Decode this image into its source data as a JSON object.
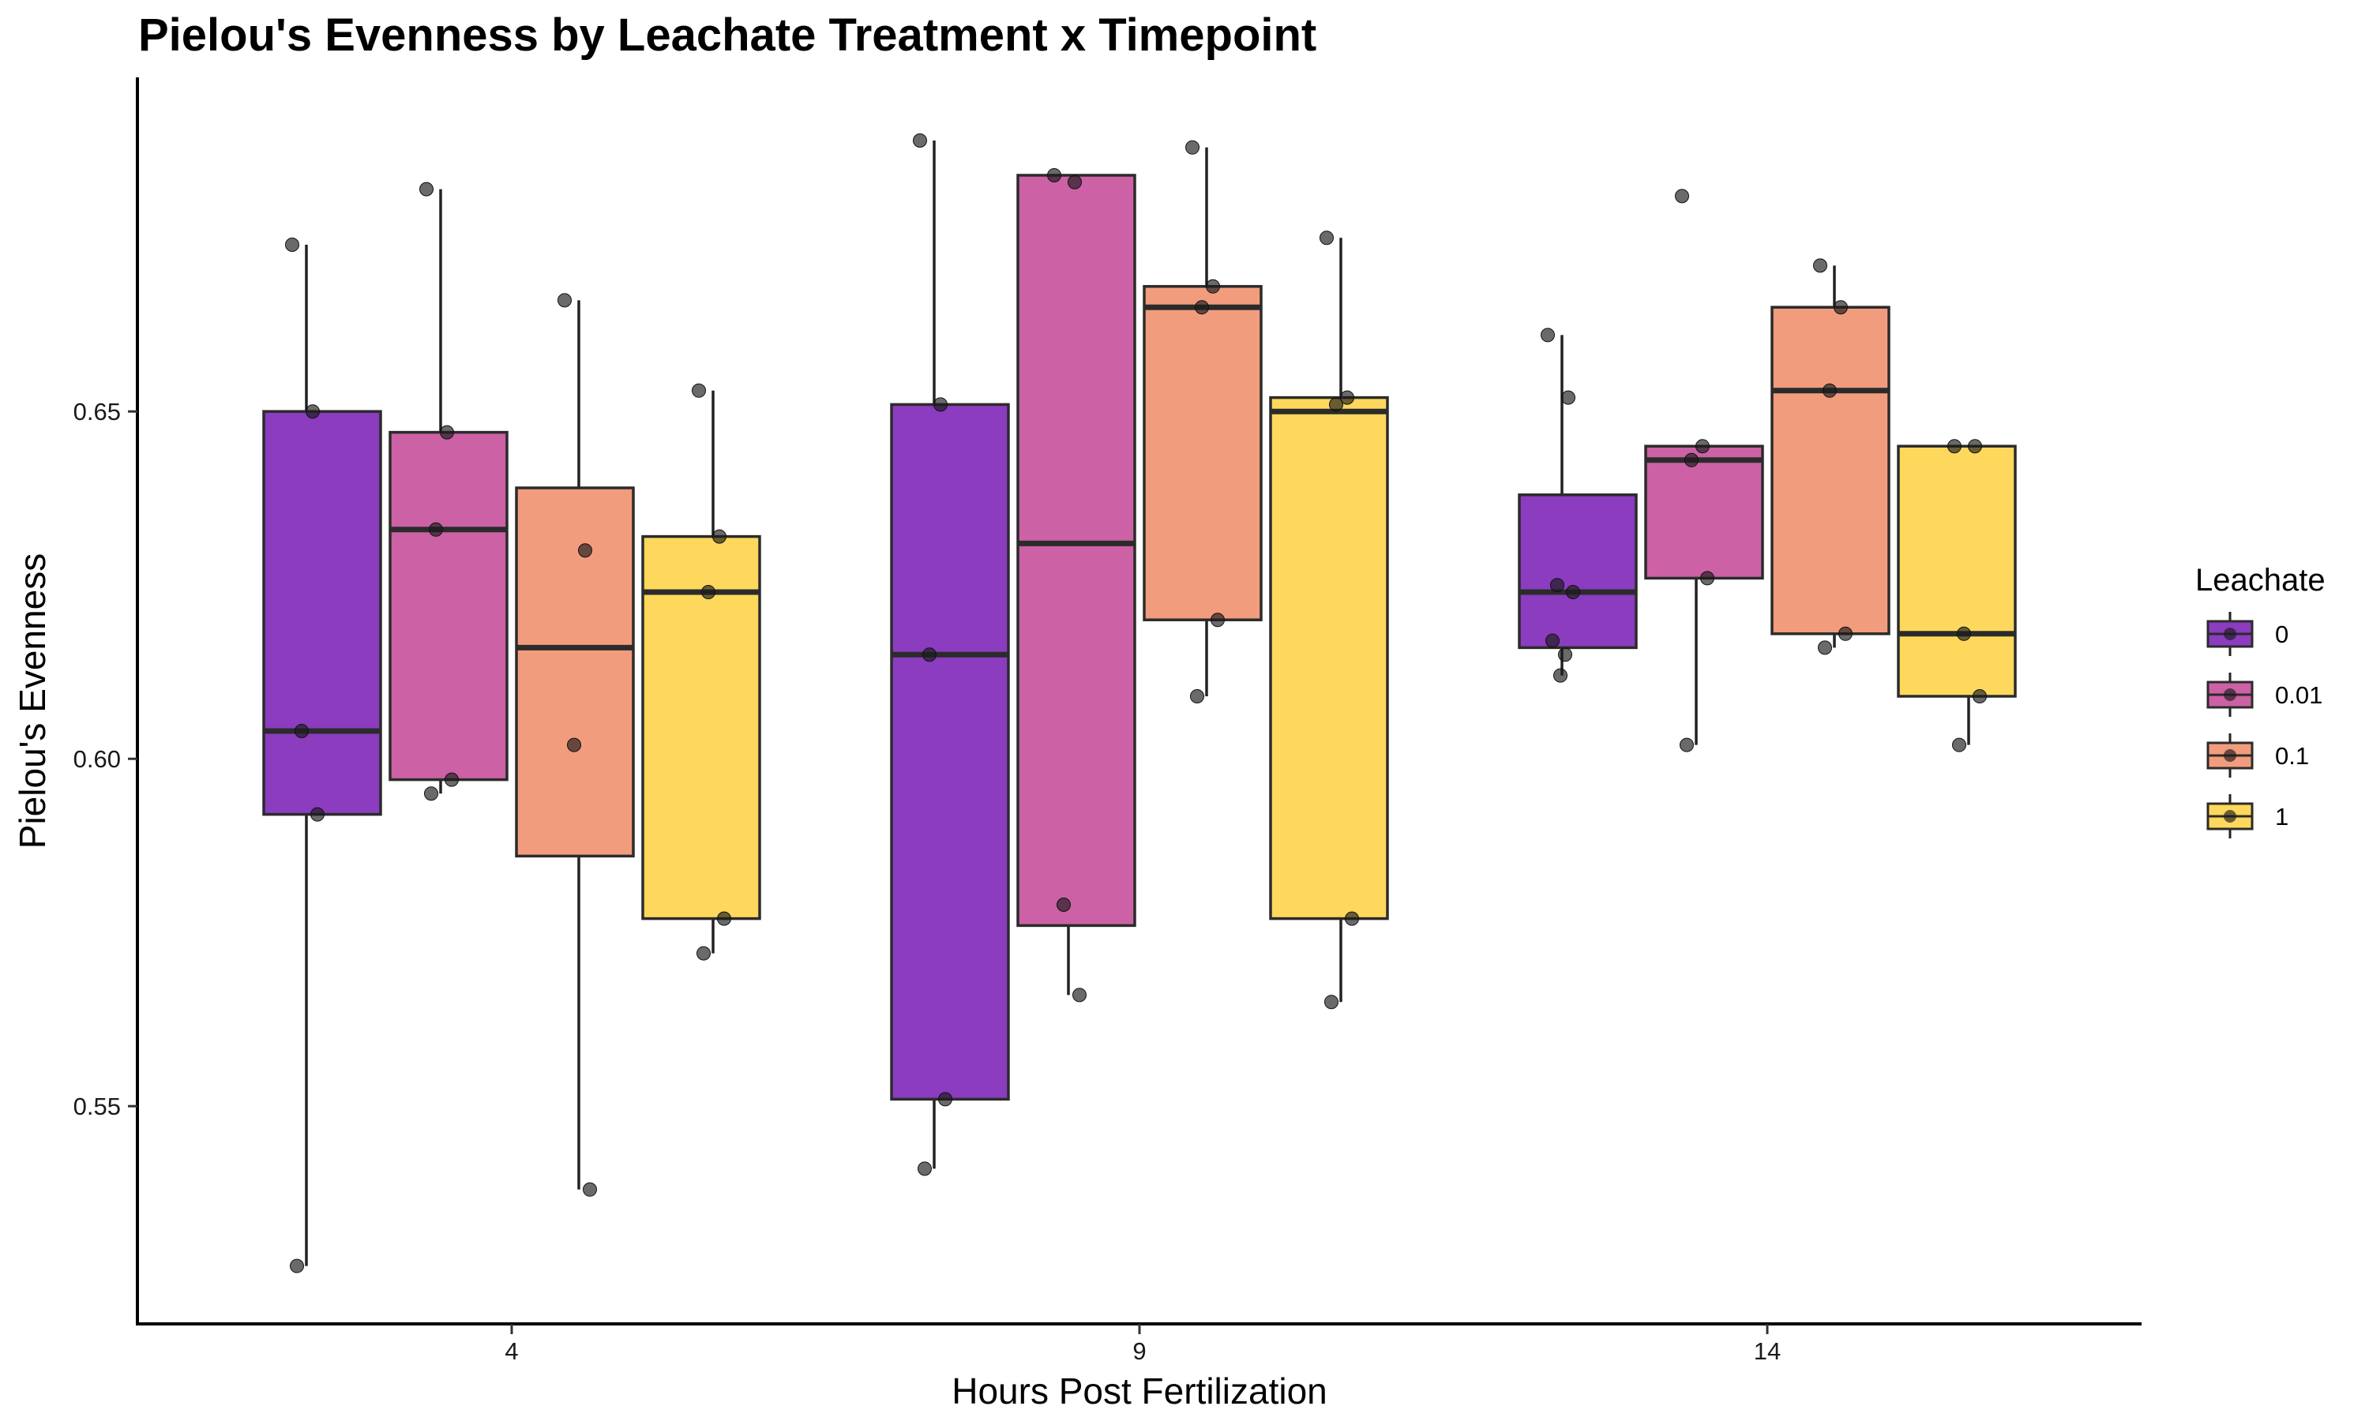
{
  "chart_data": {
    "type": "boxplot",
    "title": "Pielou's Evenness by Leachate Treatment x Timepoint",
    "xlabel": "Hours Post Fertilization",
    "ylabel": "Pielou's Evenness",
    "categories": [
      "4",
      "9",
      "14"
    ],
    "y_ticks": [
      0.55,
      0.6,
      0.65
    ],
    "y_tick_labels": [
      "0.55",
      "0.60",
      "0.65"
    ],
    "ylim": [
      0.519,
      0.698
    ],
    "grid": false,
    "legend": {
      "title": "Leachate",
      "placement": "right"
    },
    "series": [
      {
        "name": "0",
        "color": "#8B3CBF",
        "boxes": [
          {
            "x": "4",
            "whisker_low": 0.527,
            "q1": 0.592,
            "median": 0.604,
            "q3": 0.65,
            "whisker_high": 0.674,
            "points": [
              0.674,
              0.65,
              0.604,
              0.592,
              0.527
            ]
          },
          {
            "x": "9",
            "whisker_low": 0.541,
            "q1": 0.551,
            "median": 0.615,
            "q3": 0.651,
            "whisker_high": 0.689,
            "points": [
              0.689,
              0.651,
              0.615,
              0.551,
              0.541
            ]
          },
          {
            "x": "14",
            "whisker_low": 0.612,
            "q1": 0.616,
            "median": 0.624,
            "q3": 0.638,
            "whisker_high": 0.661,
            "points": [
              0.661,
              0.652,
              0.625,
              0.624,
              0.617,
              0.615,
              0.612
            ]
          }
        ]
      },
      {
        "name": "0.01",
        "color": "#CC61A5",
        "boxes": [
          {
            "x": "4",
            "whisker_low": 0.595,
            "q1": 0.597,
            "median": 0.633,
            "q3": 0.647,
            "whisker_high": 0.682,
            "points": [
              0.682,
              0.647,
              0.633,
              0.597,
              0.595
            ]
          },
          {
            "x": "9",
            "whisker_low": 0.566,
            "q1": 0.576,
            "median": 0.631,
            "q3": 0.684,
            "whisker_high": 0.684,
            "points": [
              0.684,
              0.683,
              0.579,
              0.566
            ]
          },
          {
            "x": "14",
            "whisker_low": 0.602,
            "q1": 0.626,
            "median": 0.643,
            "q3": 0.645,
            "whisker_high": 0.645,
            "points": [
              0.681,
              0.645,
              0.643,
              0.626,
              0.602
            ]
          }
        ]
      },
      {
        "name": "0.1",
        "color": "#F29C7E",
        "boxes": [
          {
            "x": "4",
            "whisker_low": 0.538,
            "q1": 0.586,
            "median": 0.616,
            "q3": 0.639,
            "whisker_high": 0.666,
            "points": [
              0.666,
              0.63,
              0.602,
              0.538
            ]
          },
          {
            "x": "9",
            "whisker_low": 0.609,
            "q1": 0.62,
            "median": 0.665,
            "q3": 0.668,
            "whisker_high": 0.688,
            "points": [
              0.688,
              0.668,
              0.665,
              0.62,
              0.609
            ]
          },
          {
            "x": "14",
            "whisker_low": 0.616,
            "q1": 0.618,
            "median": 0.653,
            "q3": 0.665,
            "whisker_high": 0.671,
            "points": [
              0.671,
              0.665,
              0.653,
              0.618,
              0.616
            ]
          }
        ]
      },
      {
        "name": "1",
        "color": "#FDD85C",
        "boxes": [
          {
            "x": "4",
            "whisker_low": 0.572,
            "q1": 0.577,
            "median": 0.624,
            "q3": 0.632,
            "whisker_high": 0.653,
            "points": [
              0.653,
              0.632,
              0.624,
              0.577,
              0.572
            ]
          },
          {
            "x": "9",
            "whisker_low": 0.565,
            "q1": 0.577,
            "median": 0.65,
            "q3": 0.652,
            "whisker_high": 0.675,
            "points": [
              0.675,
              0.652,
              0.651,
              0.577,
              0.565
            ]
          },
          {
            "x": "14",
            "whisker_low": 0.602,
            "q1": 0.609,
            "median": 0.618,
            "q3": 0.645,
            "whisker_high": 0.645,
            "points": [
              0.645,
              0.645,
              0.618,
              0.609,
              0.602
            ]
          }
        ]
      }
    ]
  }
}
